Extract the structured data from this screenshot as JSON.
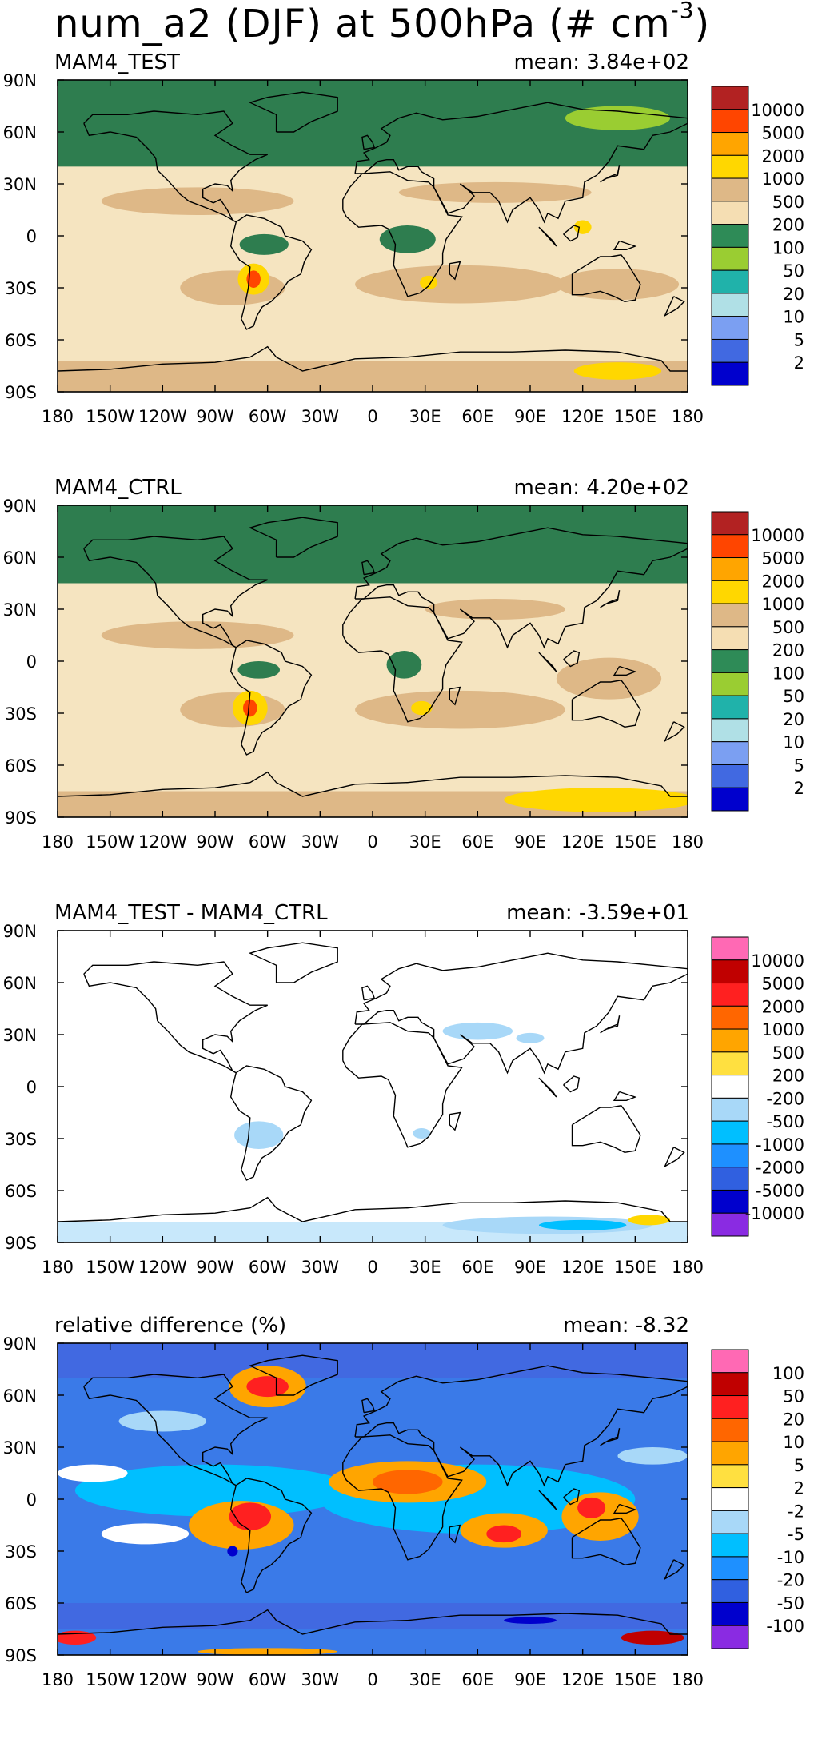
{
  "page": {
    "title_main": "num_a2 (DJF) at 500hPa (# cm",
    "title_sup": "-3",
    "title_close": ")"
  },
  "chart_data": [
    {
      "type": "heatmap",
      "title": "MAM4_TEST",
      "stat": "mean: 3.84e+02",
      "x_ticks": [
        "180",
        "150W",
        "120W",
        "90W",
        "60W",
        "30W",
        "0",
        "30E",
        "60E",
        "90E",
        "120E",
        "150E",
        "180"
      ],
      "y_ticks": [
        "90N",
        "60N",
        "30N",
        "0",
        "30S",
        "60S",
        "90S"
      ],
      "xlim": [
        -180,
        180
      ],
      "ylim": [
        -90,
        90
      ],
      "colorbar": {
        "labels": [
          "10000",
          "5000",
          "2000",
          "1000",
          "500",
          "200",
          "100",
          "50",
          "20",
          "10",
          "5",
          "2"
        ],
        "colors": [
          "#b22222",
          "#ff4500",
          "#ffa500",
          "#ffd700",
          "#deb887",
          "#f5deb3",
          "#2e8b57",
          "#9acd32",
          "#20b2aa",
          "#b0e0e6",
          "#7b9ff2",
          "#4169e1",
          "#0000cd"
        ]
      },
      "field": {
        "background": "#f5e4c0",
        "regions": [
          {
            "kind": "band",
            "lat_top": 90,
            "lat_bot": 40,
            "color": "#2e7d4f"
          },
          {
            "kind": "blob",
            "lon": 140,
            "lat": 68,
            "rx": 30,
            "ry": 7,
            "color": "#9acd32"
          },
          {
            "kind": "blob",
            "lon": -100,
            "lat": 20,
            "rx": 55,
            "ry": 8,
            "color": "#deb887"
          },
          {
            "kind": "blob",
            "lon": 70,
            "lat": 25,
            "rx": 55,
            "ry": 6,
            "color": "#deb887"
          },
          {
            "kind": "blob",
            "lon": 50,
            "lat": -28,
            "rx": 60,
            "ry": 11,
            "color": "#deb887"
          },
          {
            "kind": "blob",
            "lon": 140,
            "lat": -28,
            "rx": 35,
            "ry": 9,
            "color": "#deb887"
          },
          {
            "kind": "blob",
            "lon": -80,
            "lat": -30,
            "rx": 30,
            "ry": 10,
            "color": "#deb887"
          },
          {
            "kind": "blob",
            "lon": -62,
            "lat": -5,
            "rx": 14,
            "ry": 6,
            "color": "#2e7d4f"
          },
          {
            "kind": "blob",
            "lon": 20,
            "lat": -2,
            "rx": 16,
            "ry": 8,
            "color": "#2e7d4f"
          },
          {
            "kind": "blob",
            "lon": -68,
            "lat": -25,
            "rx": 9,
            "ry": 9,
            "color": "#ffd700"
          },
          {
            "kind": "blob",
            "lon": -68,
            "lat": -25,
            "rx": 4,
            "ry": 5,
            "color": "#ff4500"
          },
          {
            "kind": "blob",
            "lon": 32,
            "lat": -27,
            "rx": 5,
            "ry": 4,
            "color": "#ffd700"
          },
          {
            "kind": "blob",
            "lon": 120,
            "lat": 5,
            "rx": 5,
            "ry": 4,
            "color": "#ffd700"
          },
          {
            "kind": "band",
            "lat_top": -72,
            "lat_bot": -90,
            "color": "#deb887"
          },
          {
            "kind": "blob",
            "lon": 140,
            "lat": -78,
            "rx": 25,
            "ry": 5,
            "color": "#ffd700"
          }
        ]
      }
    },
    {
      "type": "heatmap",
      "title": "MAM4_CTRL",
      "stat": "mean: 4.20e+02",
      "x_ticks": [
        "180",
        "150W",
        "120W",
        "90W",
        "60W",
        "30W",
        "0",
        "30E",
        "60E",
        "90E",
        "120E",
        "150E",
        "180"
      ],
      "y_ticks": [
        "90N",
        "60N",
        "30N",
        "0",
        "30S",
        "60S",
        "90S"
      ],
      "xlim": [
        -180,
        180
      ],
      "ylim": [
        -90,
        90
      ],
      "colorbar": {
        "labels": [
          "10000",
          "5000",
          "2000",
          "1000",
          "500",
          "200",
          "100",
          "50",
          "20",
          "10",
          "5",
          "2"
        ],
        "colors": [
          "#b22222",
          "#ff4500",
          "#ffa500",
          "#ffd700",
          "#deb887",
          "#f5deb3",
          "#2e8b57",
          "#9acd32",
          "#20b2aa",
          "#b0e0e6",
          "#7b9ff2",
          "#4169e1",
          "#0000cd"
        ]
      },
      "field": {
        "background": "#f5e4c0",
        "regions": [
          {
            "kind": "band",
            "lat_top": 90,
            "lat_bot": 45,
            "color": "#2e7d4f"
          },
          {
            "kind": "blob",
            "lon": -100,
            "lat": 15,
            "rx": 55,
            "ry": 8,
            "color": "#deb887"
          },
          {
            "kind": "blob",
            "lon": 70,
            "lat": 30,
            "rx": 40,
            "ry": 6,
            "color": "#deb887"
          },
          {
            "kind": "blob",
            "lon": 50,
            "lat": -28,
            "rx": 60,
            "ry": 11,
            "color": "#deb887"
          },
          {
            "kind": "blob",
            "lon": 135,
            "lat": -10,
            "rx": 30,
            "ry": 12,
            "color": "#deb887"
          },
          {
            "kind": "blob",
            "lon": -80,
            "lat": -28,
            "rx": 30,
            "ry": 10,
            "color": "#deb887"
          },
          {
            "kind": "blob",
            "lon": -65,
            "lat": -5,
            "rx": 12,
            "ry": 5,
            "color": "#2e7d4f"
          },
          {
            "kind": "blob",
            "lon": 18,
            "lat": -2,
            "rx": 10,
            "ry": 8,
            "color": "#2e7d4f"
          },
          {
            "kind": "blob",
            "lon": -70,
            "lat": -27,
            "rx": 10,
            "ry": 10,
            "color": "#ffd700"
          },
          {
            "kind": "blob",
            "lon": -70,
            "lat": -27,
            "rx": 4,
            "ry": 5,
            "color": "#ff4500"
          },
          {
            "kind": "blob",
            "lon": 28,
            "lat": -27,
            "rx": 6,
            "ry": 4,
            "color": "#ffd700"
          },
          {
            "kind": "band",
            "lat_top": -75,
            "lat_bot": -90,
            "color": "#deb887"
          },
          {
            "kind": "blob",
            "lon": 130,
            "lat": -80,
            "rx": 55,
            "ry": 7,
            "color": "#ffd700"
          }
        ]
      }
    },
    {
      "type": "heatmap",
      "title": "MAM4_TEST - MAM4_CTRL",
      "stat": "mean: -3.59e+01",
      "x_ticks": [
        "180",
        "150W",
        "120W",
        "90W",
        "60W",
        "30W",
        "0",
        "30E",
        "60E",
        "90E",
        "120E",
        "150E",
        "180"
      ],
      "y_ticks": [
        "90N",
        "60N",
        "30N",
        "0",
        "30S",
        "60S",
        "90S"
      ],
      "xlim": [
        -180,
        180
      ],
      "ylim": [
        -90,
        90
      ],
      "colorbar": {
        "labels": [
          "10000",
          "5000",
          "2000",
          "1000",
          "500",
          "200",
          "-200",
          "-500",
          "-1000",
          "-2000",
          "-5000",
          "-10000"
        ],
        "colors": [
          "#ff69b4",
          "#c00000",
          "#ff2020",
          "#ff6600",
          "#ffa500",
          "#ffe040",
          "#ffffff",
          "#a8d8f8",
          "#00bfff",
          "#1e90ff",
          "#3060e0",
          "#0000cd",
          "#8a2be2"
        ]
      },
      "field": {
        "background": "#ffffff",
        "regions": [
          {
            "kind": "blob",
            "lon": 60,
            "lat": 32,
            "rx": 20,
            "ry": 5,
            "color": "#a8d8f8"
          },
          {
            "kind": "blob",
            "lon": 90,
            "lat": 28,
            "rx": 8,
            "ry": 3,
            "color": "#a8d8f8"
          },
          {
            "kind": "blob",
            "lon": -65,
            "lat": -28,
            "rx": 14,
            "ry": 8,
            "color": "#a8d8f8"
          },
          {
            "kind": "blob",
            "lon": 28,
            "lat": -27,
            "rx": 5,
            "ry": 3,
            "color": "#a8d8f8"
          },
          {
            "kind": "band",
            "lat_top": -78,
            "lat_bot": -90,
            "color": "#c8e8fb"
          },
          {
            "kind": "blob",
            "lon": 100,
            "lat": -80,
            "rx": 60,
            "ry": 5,
            "color": "#a8d8f8"
          },
          {
            "kind": "blob",
            "lon": 120,
            "lat": -80,
            "rx": 25,
            "ry": 3,
            "color": "#00bfff"
          },
          {
            "kind": "blob",
            "lon": 158,
            "lat": -77,
            "rx": 12,
            "ry": 3,
            "color": "#ffd700"
          }
        ]
      }
    },
    {
      "type": "heatmap",
      "title": "relative difference (%)",
      "stat": "mean: -8.32",
      "x_ticks": [
        "180",
        "150W",
        "120W",
        "90W",
        "60W",
        "30W",
        "0",
        "30E",
        "60E",
        "90E",
        "120E",
        "150E",
        "180"
      ],
      "y_ticks": [
        "90N",
        "60N",
        "30N",
        "0",
        "30S",
        "60S",
        "90S"
      ],
      "xlim": [
        -180,
        180
      ],
      "ylim": [
        -90,
        90
      ],
      "colorbar": {
        "labels": [
          "100",
          "50",
          "20",
          "10",
          "5",
          "2",
          "-2",
          "-5",
          "-10",
          "-20",
          "-50",
          "-100"
        ],
        "colors": [
          "#ff69b4",
          "#c00000",
          "#ff2020",
          "#ff6600",
          "#ffa500",
          "#ffe040",
          "#ffffff",
          "#a8d8f8",
          "#00bfff",
          "#1e90ff",
          "#3060e0",
          "#0000cd",
          "#8a2be2"
        ]
      },
      "field": {
        "background": "#3a7ae8",
        "regions": [
          {
            "kind": "band",
            "lat_top": 90,
            "lat_bot": 70,
            "color": "#4169e1"
          },
          {
            "kind": "blob",
            "lon": -90,
            "lat": 5,
            "rx": 80,
            "ry": 15,
            "color": "#00bfff"
          },
          {
            "kind": "blob",
            "lon": 60,
            "lat": 0,
            "rx": 90,
            "ry": 20,
            "color": "#00bfff"
          },
          {
            "kind": "blob",
            "lon": -60,
            "lat": 65,
            "rx": 22,
            "ry": 12,
            "color": "#ffa500"
          },
          {
            "kind": "blob",
            "lon": -60,
            "lat": 65,
            "rx": 12,
            "ry": 6,
            "color": "#ff2020"
          },
          {
            "kind": "blob",
            "lon": 20,
            "lat": 10,
            "rx": 45,
            "ry": 12,
            "color": "#ffa500"
          },
          {
            "kind": "blob",
            "lon": 20,
            "lat": 10,
            "rx": 20,
            "ry": 7,
            "color": "#ff6600"
          },
          {
            "kind": "blob",
            "lon": -75,
            "lat": -15,
            "rx": 30,
            "ry": 14,
            "color": "#ffa500"
          },
          {
            "kind": "blob",
            "lon": -70,
            "lat": -10,
            "rx": 12,
            "ry": 8,
            "color": "#ff2020"
          },
          {
            "kind": "blob",
            "lon": 75,
            "lat": -18,
            "rx": 25,
            "ry": 10,
            "color": "#ffa500"
          },
          {
            "kind": "blob",
            "lon": 75,
            "lat": -20,
            "rx": 10,
            "ry": 5,
            "color": "#ff2020"
          },
          {
            "kind": "blob",
            "lon": 130,
            "lat": -10,
            "rx": 22,
            "ry": 14,
            "color": "#ffa500"
          },
          {
            "kind": "blob",
            "lon": 125,
            "lat": -5,
            "rx": 8,
            "ry": 6,
            "color": "#ff2020"
          },
          {
            "kind": "blob",
            "lon": -130,
            "lat": -20,
            "rx": 25,
            "ry": 6,
            "color": "#ffffff"
          },
          {
            "kind": "blob",
            "lon": -160,
            "lat": 15,
            "rx": 20,
            "ry": 5,
            "color": "#ffffff"
          },
          {
            "kind": "blob",
            "lon": 160,
            "lat": 25,
            "rx": 20,
            "ry": 5,
            "color": "#a8d8f8"
          },
          {
            "kind": "blob",
            "lon": -120,
            "lat": 45,
            "rx": 25,
            "ry": 6,
            "color": "#a8d8f8"
          },
          {
            "kind": "band",
            "lat_top": -60,
            "lat_bot": -75,
            "color": "#4169e1"
          },
          {
            "kind": "blob",
            "lon": -170,
            "lat": -80,
            "rx": 12,
            "ry": 4,
            "color": "#ff2020"
          },
          {
            "kind": "blob",
            "lon": 160,
            "lat": -80,
            "rx": 18,
            "ry": 4,
            "color": "#c00000"
          },
          {
            "kind": "blob",
            "lon": -60,
            "lat": -88,
            "rx": 40,
            "ry": 2,
            "color": "#ffa500"
          },
          {
            "kind": "blob",
            "lon": -80,
            "lat": -30,
            "rx": 3,
            "ry": 3,
            "color": "#0000cd"
          },
          {
            "kind": "blob",
            "lon": 90,
            "lat": -70,
            "rx": 15,
            "ry": 2,
            "color": "#0000cd"
          }
        ]
      }
    }
  ]
}
